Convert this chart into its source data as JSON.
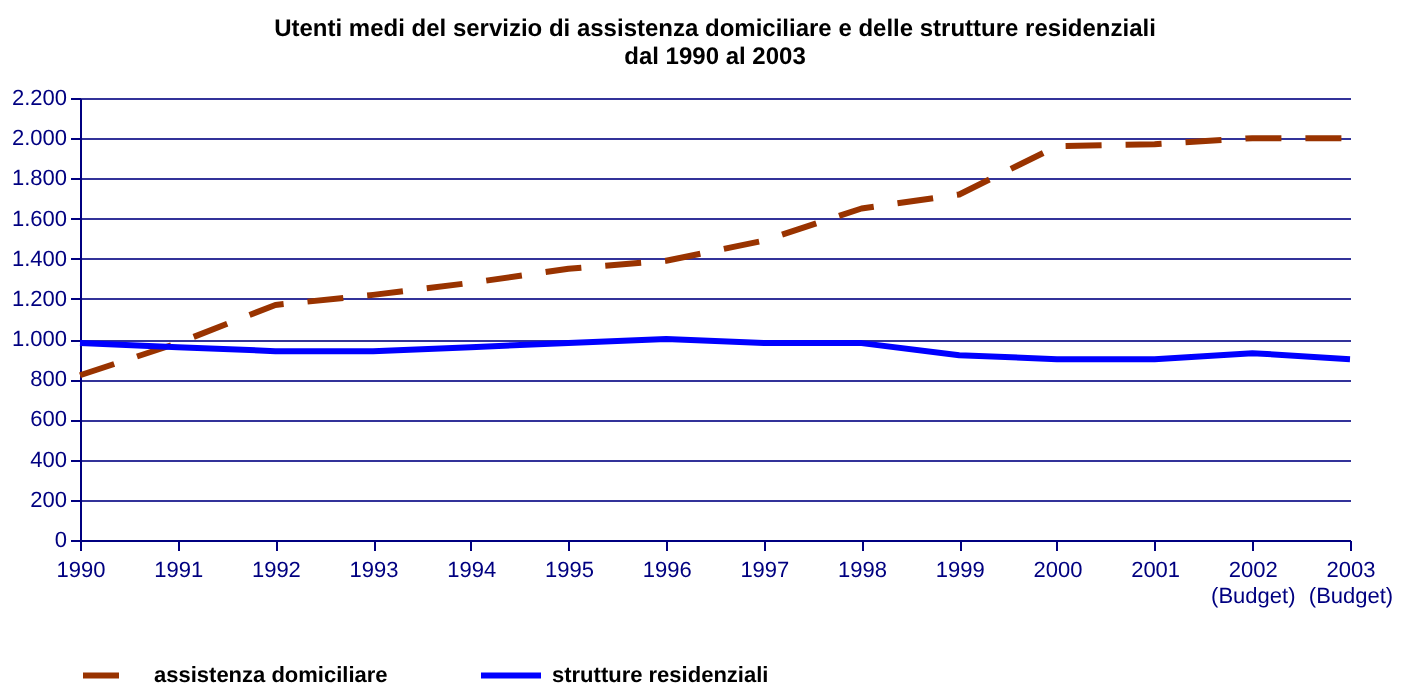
{
  "chart_data": {
    "type": "line",
    "title": "Utenti medi del servizio di assistenza domiciliare e delle strutture residenziali\ndal 1990 al 2003",
    "x": [
      1990,
      1991,
      1992,
      1993,
      1994,
      1995,
      1996,
      1997,
      1998,
      1999,
      2000,
      2001,
      2002,
      2003
    ],
    "xlim": [
      1990,
      2003
    ],
    "xticks": [
      1990,
      1991,
      1992,
      1993,
      1994,
      1995,
      1996,
      1997,
      1998,
      1999,
      2000,
      2001,
      {
        "value": 2002,
        "label": "2002\n(Budget)"
      },
      {
        "value": 2003,
        "label": "2003\n(Budget)"
      }
    ],
    "ylim": [
      0,
      2200
    ],
    "yticks": [
      {
        "value": 0,
        "label": "0"
      },
      {
        "value": 200,
        "label": "200"
      },
      {
        "value": 400,
        "label": "400"
      },
      {
        "value": 600,
        "label": "600"
      },
      {
        "value": 800,
        "label": "800"
      },
      {
        "value": 1000,
        "label": "1.000"
      },
      {
        "value": 1200,
        "label": "1.200"
      },
      {
        "value": 1400,
        "label": "1.400"
      },
      {
        "value": 1600,
        "label": "1.600"
      },
      {
        "value": 1800,
        "label": "1.800"
      },
      {
        "value": 2000,
        "label": "2.000"
      },
      {
        "value": 2200,
        "label": "2.200"
      }
    ],
    "grid": "y",
    "legend": "bottom",
    "marker": "none",
    "series": [
      {
        "name": "assistenza domiciliare",
        "color": "#993300",
        "line_style": "dashed",
        "values": [
          820,
          980,
          1170,
          1220,
          1280,
          1350,
          1390,
          1490,
          1650,
          1720,
          1960,
          1970,
          2000,
          2000
        ]
      },
      {
        "name": "strutture residenziali",
        "color": "#0000ff",
        "line_style": "solid",
        "values": [
          980,
          960,
          940,
          940,
          960,
          980,
          1000,
          980,
          980,
          920,
          900,
          900,
          930,
          900
        ]
      }
    ]
  }
}
